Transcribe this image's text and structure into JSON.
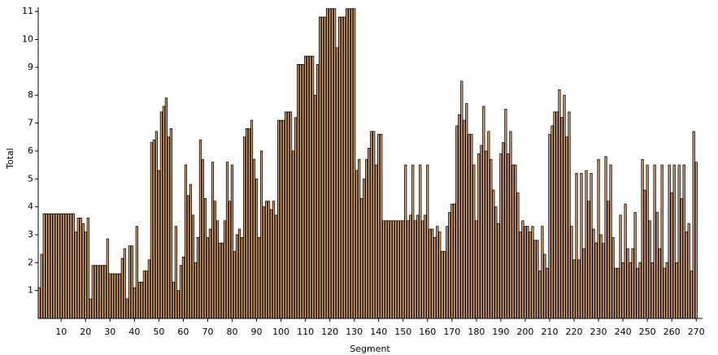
{
  "chart_data": {
    "type": "bar",
    "xlabel": "Segment",
    "ylabel": "Total",
    "color": "#d9a070",
    "edge_color": "#000000",
    "x": [
      1,
      2,
      3,
      4,
      5,
      6,
      7,
      8,
      9,
      10,
      11,
      12,
      13,
      14,
      15,
      16,
      17,
      18,
      19,
      20,
      21,
      22,
      23,
      24,
      25,
      26,
      27,
      28,
      29,
      30,
      31,
      32,
      33,
      34,
      35,
      36,
      37,
      38,
      39,
      40,
      41,
      42,
      43,
      44,
      45,
      46,
      47,
      48,
      49,
      50,
      51,
      52,
      53,
      54,
      55,
      56,
      57,
      58,
      59,
      60,
      61,
      62,
      63,
      64,
      65,
      66,
      67,
      68,
      69,
      70,
      71,
      72,
      73,
      74,
      75,
      76,
      77,
      78,
      79,
      80,
      81,
      82,
      83,
      84,
      85,
      86,
      87,
      88,
      89,
      90,
      91,
      92,
      93,
      94,
      95,
      96,
      97,
      98,
      99,
      100,
      101,
      102,
      103,
      104,
      105,
      106,
      107,
      108,
      109,
      110,
      111,
      112,
      113,
      114,
      115,
      116,
      117,
      118,
      119,
      120,
      121,
      122,
      123,
      124,
      125,
      126,
      127,
      128,
      129,
      130,
      131,
      132,
      133,
      134,
      135,
      136,
      137,
      138,
      139,
      140,
      141,
      142,
      143,
      144,
      145,
      146,
      147,
      148,
      149,
      150,
      151,
      152,
      153,
      154,
      155,
      156,
      157,
      158,
      159,
      160,
      161,
      162,
      163,
      164,
      165,
      166,
      167,
      168,
      169,
      170,
      171,
      172,
      173,
      174,
      175,
      176,
      177,
      178,
      179,
      180,
      181,
      182,
      183,
      184,
      185,
      186,
      187,
      188,
      189,
      190,
      191,
      192,
      193,
      194,
      195,
      196,
      197,
      198,
      199,
      200,
      201,
      202,
      203,
      204,
      205,
      206,
      207,
      208,
      209,
      210,
      211,
      212,
      213,
      214,
      215,
      216,
      217,
      218,
      219,
      220,
      221,
      222,
      223,
      224,
      225,
      226,
      227,
      228,
      229,
      230,
      231,
      232,
      233,
      234,
      235,
      236,
      237,
      238,
      239,
      240,
      241,
      242,
      243,
      244,
      245,
      246,
      247,
      248,
      249,
      250,
      251,
      252,
      253,
      254,
      255,
      256,
      257,
      258,
      259,
      260,
      261,
      262,
      263,
      264,
      265,
      266,
      267,
      268,
      269,
      270
    ],
    "values": [
      1.1,
      2.3,
      3.75,
      3.75,
      3.75,
      3.75,
      3.75,
      3.75,
      3.75,
      3.75,
      3.75,
      3.75,
      3.75,
      3.75,
      3.75,
      3.1,
      3.6,
      3.6,
      3.4,
      3.1,
      3.6,
      0.7,
      1.9,
      1.9,
      1.9,
      1.9,
      1.9,
      1.9,
      2.85,
      1.6,
      1.6,
      1.6,
      1.6,
      1.6,
      2.15,
      2.5,
      0.7,
      2.6,
      2.6,
      1.1,
      3.3,
      1.3,
      1.3,
      1.7,
      1.7,
      2.1,
      6.3,
      6.4,
      6.7,
      5.3,
      7.4,
      7.6,
      7.9,
      6.5,
      6.8,
      1.3,
      3.3,
      1.0,
      1.9,
      2.2,
      5.5,
      4.4,
      4.8,
      3.7,
      2.0,
      2.9,
      6.4,
      5.7,
      4.3,
      2.9,
      3.2,
      5.6,
      4.2,
      3.5,
      2.7,
      2.7,
      3.5,
      5.6,
      4.2,
      5.5,
      2.4,
      3.0,
      3.2,
      2.9,
      6.5,
      6.8,
      6.8,
      7.1,
      5.7,
      5.0,
      2.9,
      6.0,
      4.0,
      4.2,
      4.2,
      3.9,
      4.2,
      3.7,
      7.1,
      7.1,
      7.1,
      7.4,
      7.4,
      7.4,
      6.0,
      7.2,
      9.1,
      9.1,
      9.1,
      9.4,
      9.4,
      9.4,
      9.4,
      8.0,
      9.1,
      10.8,
      10.8,
      10.8,
      11.1,
      11.1,
      11.1,
      11.1,
      9.7,
      10.8,
      10.8,
      10.8,
      11.1,
      11.1,
      11.1,
      11.1,
      5.3,
      5.7,
      4.3,
      5.0,
      5.7,
      6.1,
      6.7,
      6.7,
      5.5,
      6.6,
      6.6,
      3.5,
      3.5,
      3.5,
      3.5,
      3.5,
      3.5,
      3.5,
      3.5,
      3.5,
      5.5,
      3.5,
      3.7,
      5.5,
      3.5,
      3.7,
      5.5,
      3.5,
      3.7,
      5.5,
      3.2,
      3.2,
      2.9,
      3.3,
      3.1,
      2.4,
      2.4,
      3.3,
      3.8,
      4.1,
      4.1,
      6.9,
      7.3,
      8.5,
      7.1,
      7.7,
      6.6,
      6.6,
      5.5,
      3.5,
      5.9,
      6.2,
      7.6,
      6.0,
      6.7,
      5.7,
      4.6,
      4.0,
      3.4,
      5.9,
      6.3,
      7.5,
      5.9,
      6.7,
      5.5,
      5.5,
      4.5,
      3.1,
      3.5,
      3.3,
      3.3,
      3.1,
      3.3,
      2.8,
      2.8,
      1.7,
      3.3,
      2.3,
      1.8,
      6.6,
      6.9,
      7.4,
      7.4,
      8.2,
      7.2,
      8.0,
      6.5,
      7.4,
      3.3,
      2.1,
      5.2,
      2.1,
      5.2,
      2.5,
      5.3,
      4.2,
      5.2,
      3.2,
      2.7,
      5.7,
      3.0,
      2.7,
      5.8,
      4.2,
      5.5,
      2.9,
      1.8,
      1.8,
      3.7,
      2.0,
      4.1,
      2.5,
      2.0,
      2.5,
      3.8,
      1.8,
      2.0,
      5.7,
      4.6,
      5.5,
      3.5,
      2.0,
      5.5,
      3.8,
      2.5,
      5.5,
      1.8,
      2.0,
      5.5,
      4.5,
      5.5,
      2.0,
      5.5,
      4.3,
      5.5,
      3.1,
      3.4,
      1.7,
      6.7,
      5.6
    ],
    "xlim": [
      0.6,
      272.6
    ],
    "xticks": [
      10,
      20,
      30,
      40,
      50,
      60,
      70,
      80,
      90,
      100,
      110,
      120,
      130,
      140,
      150,
      160,
      170,
      180,
      190,
      200,
      210,
      220,
      230,
      240,
      250,
      260,
      270
    ],
    "ylim": [
      0,
      11.15
    ],
    "yticks": [
      1,
      2,
      3,
      4,
      5,
      6,
      7,
      8,
      9,
      10,
      11
    ]
  }
}
